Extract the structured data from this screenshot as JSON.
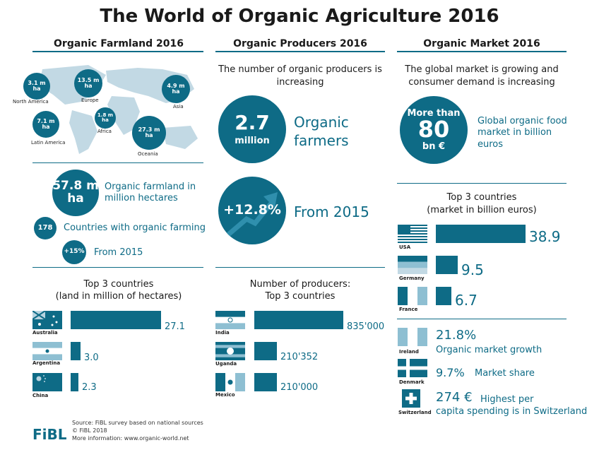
{
  "title": "The World of Organic Agriculture 2016",
  "columns": {
    "farmland": "Organic Farmland 2016",
    "producers": "Organic Producers 2016",
    "market": "Organic Market 2016"
  },
  "map": {
    "regions": [
      {
        "value": "3.1 m",
        "unit": "ha",
        "name": "North America"
      },
      {
        "value": "13.5 m",
        "unit": "ha",
        "name": "Europe"
      },
      {
        "value": "4.9 m",
        "unit": "ha",
        "name": "Asia"
      },
      {
        "value": "7.1 m",
        "unit": "ha",
        "name": "Latin America"
      },
      {
        "value": "1.8 m",
        "unit": "ha",
        "name": "Africa"
      },
      {
        "value": "27.3 m",
        "unit": "ha",
        "name": "Oceania"
      }
    ]
  },
  "farmland_stats": {
    "total_value": "57.8 m",
    "total_unit": "ha",
    "total_desc": "Organic farmland in million hectares",
    "countries_value": "178",
    "countries_desc": "Countries with organic farming",
    "growth_value": "+15%",
    "growth_desc": "From 2015"
  },
  "producers_stats": {
    "intro": "The number of organic producers is increasing",
    "value": "2.7",
    "unit": "million",
    "desc": "Organic farmers",
    "growth_value": "+12.8%",
    "growth_desc": "From 2015"
  },
  "market_stats": {
    "intro": "The global market is growing and consumer demand is increasing",
    "prefix": "More than",
    "value": "80",
    "unit": "bn €",
    "desc": "Global organic food market in billion euros",
    "growth_value": "21.8%",
    "growth_desc": "Organic market growth",
    "share_value": "9.7%",
    "share_desc": "Market share",
    "capita_value": "274 €",
    "capita_desc1": "Highest per",
    "capita_desc2": "capita spending is in Switzerland",
    "flags": [
      "Ireland",
      "Denmark",
      "Switzerland"
    ]
  },
  "chart_data": [
    {
      "type": "bar",
      "title": "Top 3 countries (land in million of hectares)",
      "categories": [
        "Australia",
        "Argentina",
        "China"
      ],
      "values": [
        27.1,
        3.0,
        2.3
      ],
      "labels": [
        "27.1",
        "3.0",
        "2.3"
      ]
    },
    {
      "type": "bar",
      "title": "Number of producers: Top 3 countries",
      "categories": [
        "India",
        "Uganda",
        "Mexico"
      ],
      "values": [
        835000,
        210352,
        210000
      ],
      "labels": [
        "835'000",
        "210'352",
        "210'000"
      ]
    },
    {
      "type": "bar",
      "title": "Top 3 countries (market in billion euros)",
      "categories": [
        "USA",
        "Germany",
        "France"
      ],
      "values": [
        38.9,
        9.5,
        6.7
      ],
      "labels": [
        "38.9",
        "9.5",
        "6.7"
      ]
    }
  ],
  "chart_titles": {
    "land_1": "Top 3 countries",
    "land_2": "(land in million of hectares)",
    "prod_1": "Number of producers:",
    "prod_2": "Top 3 countries",
    "market_1": "Top 3 countries",
    "market_2": "(market in billion euros)"
  },
  "footer": {
    "logo": "FiBL",
    "source": "Source: FiBL survey based on national sources",
    "copyright": "© FiBL 2018",
    "more": "More information: www.organic-world.net"
  }
}
